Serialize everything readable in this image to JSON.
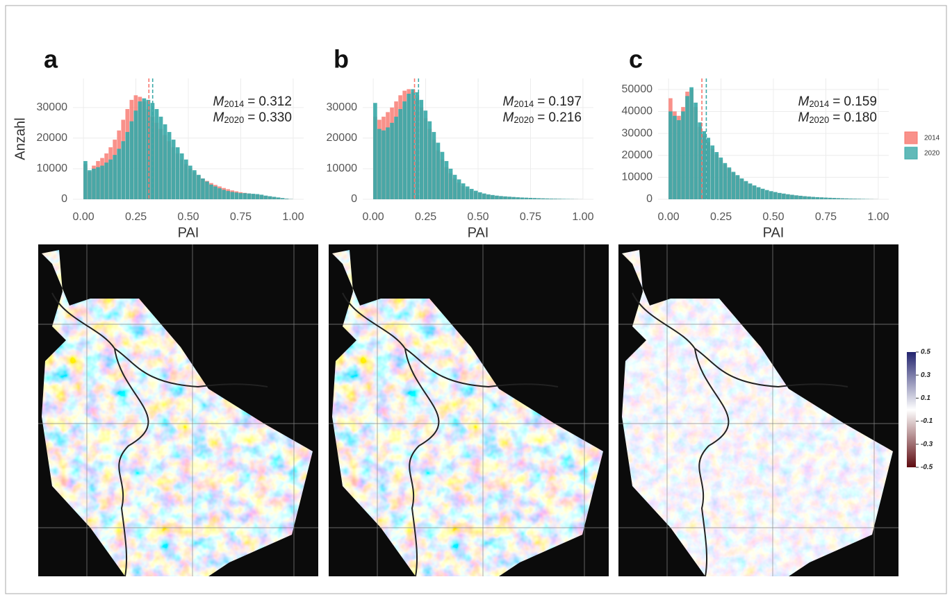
{
  "legend_position": "right",
  "colorbar": {
    "colors": [
      "#23246e",
      "#ffffff",
      "#5e0b10"
    ],
    "range": [
      -0.5,
      0.5
    ],
    "ticks": [
      0.5,
      0.3,
      0.1,
      -0.1,
      -0.3,
      -0.5
    ]
  },
  "chart_data": [
    {
      "type": "histogram",
      "panel": "a",
      "xlabel": "PAI",
      "ylabel": "Anzahl",
      "stat_symbol": "M",
      "stat_sep": "=",
      "grid": true,
      "bins": [
        0,
        0.02,
        0.04,
        0.06,
        0.08,
        0.1,
        0.12,
        0.14,
        0.16,
        0.18,
        0.2,
        0.22,
        0.24,
        0.26,
        0.28,
        0.3,
        0.32,
        0.34,
        0.36,
        0.38,
        0.4,
        0.42,
        0.44,
        0.46,
        0.48,
        0.5,
        0.52,
        0.54,
        0.56,
        0.58,
        0.6,
        0.62,
        0.64,
        0.66,
        0.68,
        0.7,
        0.72,
        0.74,
        0.76,
        0.78,
        0.8,
        0.82,
        0.84,
        0.86,
        0.88,
        0.9,
        0.92,
        0.94,
        0.96,
        0.98,
        1
      ],
      "xlim": [
        -0.05,
        1.05
      ],
      "xticks": [
        {
          "value": 0,
          "label": "0.00"
        },
        {
          "value": 0.25,
          "label": "0.25"
        },
        {
          "value": 0.5,
          "label": "0.50"
        },
        {
          "value": 0.75,
          "label": "0.75"
        },
        {
          "value": 1,
          "label": "1.00"
        }
      ],
      "ylim": [
        0,
        39500
      ],
      "yticks": [
        0,
        10000,
        20000,
        30000
      ],
      "series": [
        {
          "name": "2014",
          "color": "#f8766d",
          "mean": 0.312,
          "mean_label": "0.312",
          "values": [
            11500,
            9000,
            11000,
            12500,
            13500,
            15000,
            17000,
            19500,
            22500,
            26000,
            29500,
            32500,
            34000,
            33500,
            32000,
            29500,
            27000,
            25000,
            23000,
            21000,
            19000,
            17000,
            15000,
            13000,
            11500,
            10000,
            8800,
            7700,
            6800,
            6000,
            5300,
            4700,
            4200,
            3700,
            3300,
            2900,
            2600,
            2300,
            2100,
            1900,
            1700,
            1500,
            1300,
            1100,
            900,
            700,
            500,
            350,
            200,
            80
          ]
        },
        {
          "name": "2020",
          "color": "#3aa9a8",
          "mean": 0.33,
          "mean_label": "0.330",
          "values": [
            12500,
            9500,
            10000,
            10500,
            11000,
            12000,
            13000,
            14500,
            16500,
            19000,
            22000,
            25500,
            29000,
            32000,
            33000,
            32500,
            31500,
            29500,
            27000,
            24500,
            22000,
            19500,
            17000,
            15000,
            13000,
            11000,
            9500,
            8000,
            6800,
            5800,
            4800,
            4200,
            3600,
            3100,
            2700,
            2400,
            2200,
            2000,
            2000,
            1900,
            1800,
            1700,
            1500,
            1200,
            1000,
            800,
            600,
            400,
            200,
            80
          ]
        }
      ]
    },
    {
      "type": "histogram",
      "panel": "b",
      "xlabel": "PAI",
      "stat_symbol": "M",
      "stat_sep": "=",
      "grid": true,
      "bins": [
        0,
        0.02,
        0.04,
        0.06,
        0.08,
        0.1,
        0.12,
        0.14,
        0.16,
        0.18,
        0.2,
        0.22,
        0.24,
        0.26,
        0.28,
        0.3,
        0.32,
        0.34,
        0.36,
        0.38,
        0.4,
        0.42,
        0.44,
        0.46,
        0.48,
        0.5,
        0.52,
        0.54,
        0.56,
        0.58,
        0.6,
        0.62,
        0.64,
        0.66,
        0.68,
        0.7,
        0.72,
        0.74,
        0.76,
        0.78,
        0.8,
        0.82,
        0.84,
        0.86,
        0.88,
        0.9,
        0.92,
        0.94,
        0.96,
        0.98,
        1
      ],
      "xlim": [
        -0.05,
        1.05
      ],
      "xticks": [
        {
          "value": 0,
          "label": "0.00"
        },
        {
          "value": 0.25,
          "label": "0.25"
        },
        {
          "value": 0.5,
          "label": "0.50"
        },
        {
          "value": 0.75,
          "label": "0.75"
        },
        {
          "value": 1,
          "label": "1.00"
        }
      ],
      "ylim": [
        0,
        39500
      ],
      "yticks": [
        0,
        10000,
        20000,
        30000
      ],
      "series": [
        {
          "name": "2014",
          "color": "#f8766d",
          "mean": 0.197,
          "mean_label": "0.197",
          "values": [
            27000,
            26000,
            27000,
            28500,
            30000,
            32000,
            34000,
            35500,
            36000,
            35000,
            33000,
            30000,
            26500,
            23000,
            19500,
            16000,
            13000,
            10500,
            8500,
            6800,
            5400,
            4300,
            3500,
            2900,
            2400,
            2000,
            1700,
            1450,
            1250,
            1100,
            980,
            880,
            790,
            700,
            620,
            550,
            490,
            430,
            380,
            330,
            280,
            240,
            200,
            170,
            140,
            110,
            85,
            60,
            35,
            15
          ]
        },
        {
          "name": "2020",
          "color": "#3aa9a8",
          "mean": 0.216,
          "mean_label": "0.216",
          "values": [
            31500,
            23000,
            22500,
            23500,
            25000,
            27000,
            29500,
            32000,
            34500,
            36000,
            35000,
            32500,
            29000,
            25500,
            22000,
            18500,
            15500,
            12500,
            10000,
            8000,
            6500,
            5200,
            4200,
            3400,
            2800,
            2300,
            1900,
            1600,
            1400,
            1200,
            1050,
            950,
            850,
            750,
            650,
            580,
            520,
            460,
            400,
            350,
            300,
            260,
            220,
            190,
            160,
            130,
            100,
            70,
            40,
            20
          ]
        }
      ]
    },
    {
      "type": "histogram",
      "panel": "c",
      "xlabel": "PAI",
      "stat_symbol": "M",
      "stat_sep": "=",
      "grid": true,
      "bins": [
        0,
        0.02,
        0.04,
        0.06,
        0.08,
        0.1,
        0.12,
        0.14,
        0.16,
        0.18,
        0.2,
        0.22,
        0.24,
        0.26,
        0.28,
        0.3,
        0.32,
        0.34,
        0.36,
        0.38,
        0.4,
        0.42,
        0.44,
        0.46,
        0.48,
        0.5,
        0.52,
        0.54,
        0.56,
        0.58,
        0.6,
        0.62,
        0.64,
        0.66,
        0.68,
        0.7,
        0.72,
        0.74,
        0.76,
        0.78,
        0.8,
        0.82,
        0.84,
        0.86,
        0.88,
        0.9,
        0.92,
        0.94,
        0.96,
        0.98,
        1
      ],
      "xlim": [
        -0.05,
        1.05
      ],
      "xticks": [
        {
          "value": 0,
          "label": "0.00"
        },
        {
          "value": 0.25,
          "label": "0.25"
        },
        {
          "value": 0.5,
          "label": "0.50"
        },
        {
          "value": 0.75,
          "label": "0.75"
        },
        {
          "value": 1,
          "label": "1.00"
        }
      ],
      "ylim": [
        0,
        55000
      ],
      "yticks": [
        0,
        10000,
        20000,
        30000,
        40000,
        50000
      ],
      "series": [
        {
          "name": "2014",
          "color": "#f8766d",
          "mean": 0.159,
          "mean_label": "0.159",
          "values": [
            46000,
            40000,
            38000,
            42000,
            49000,
            50000,
            42000,
            33000,
            29000,
            26000,
            23000,
            20500,
            18000,
            15800,
            13900,
            12100,
            10600,
            9200,
            8000,
            7000,
            6100,
            5300,
            4600,
            4050,
            3550,
            3150,
            2800,
            2500,
            2200,
            1950,
            1750,
            1550,
            1360,
            1200,
            1060,
            940,
            830,
            740,
            650,
            570,
            500,
            430,
            370,
            310,
            260,
            210,
            170,
            120,
            75,
            35
          ]
        },
        {
          "name": "2020",
          "color": "#3aa9a8",
          "mean": 0.18,
          "mean_label": "0.180",
          "values": [
            40000,
            38000,
            36000,
            40000,
            47000,
            51000,
            44000,
            35000,
            31000,
            28000,
            24500,
            21500,
            19000,
            16500,
            14500,
            12500,
            11000,
            9500,
            8300,
            7200,
            6300,
            5500,
            4800,
            4200,
            3700,
            3300,
            2900,
            2600,
            2300,
            2050,
            1800,
            1600,
            1400,
            1250,
            1100,
            980,
            870,
            770,
            680,
            600,
            520,
            450,
            390,
            330,
            280,
            230,
            180,
            130,
            80,
            40
          ]
        }
      ]
    }
  ]
}
